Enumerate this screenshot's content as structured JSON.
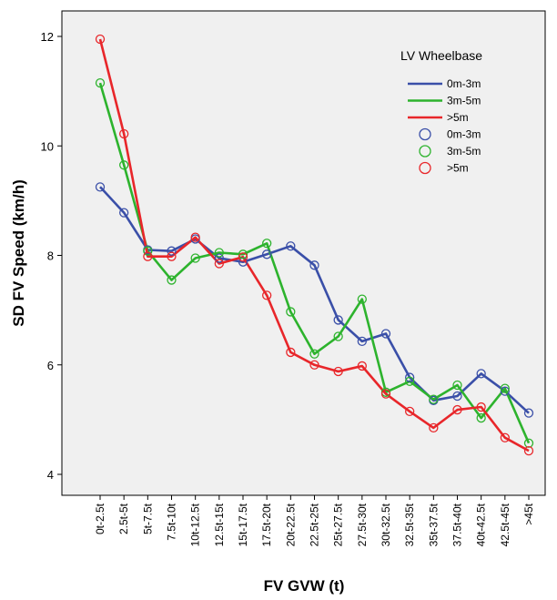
{
  "chart_data": {
    "type": "line",
    "xlabel": "FV GVW (t)",
    "ylabel": "SD FV Speed (km/h)",
    "ylim": [
      3.7,
      12.5
    ],
    "yticks": [
      4,
      6,
      8,
      10,
      12
    ],
    "grid": false,
    "legend_position": "top-right",
    "legend_title": "LV Wheelbase",
    "legend_entries": [
      {
        "label": "0m-3m",
        "kind": "line",
        "color": "#3a4fa8"
      },
      {
        "label": "3m-5m",
        "kind": "line",
        "color": "#2db32d"
      },
      {
        "label": ">5m",
        "kind": "line",
        "color": "#e8262a"
      },
      {
        "label": "0m-3m",
        "kind": "marker",
        "color": "#3a4fa8"
      },
      {
        "label": "3m-5m",
        "kind": "marker",
        "color": "#2db32d"
      },
      {
        "label": ">5m",
        "kind": "marker",
        "color": "#e8262a"
      }
    ],
    "categories": [
      "0t-2.5t",
      "2.5t-5t",
      "5t-7.5t",
      "7.5t-10t",
      "10t-12.5t",
      "12.5t-15t",
      "15t-17.5t",
      "17.5t-20t",
      "20t-22.5t",
      "22.5t-25t",
      "25t-27.5t",
      "27.5t-30t",
      "30t-32.5t",
      "32.5t-35t",
      "35t-37.5t",
      "37.5t-40t",
      "40t-42.5t",
      "42.5t-45t",
      ">45t"
    ],
    "series": [
      {
        "name": "0m-3m",
        "color": "#3a4fa8",
        "values": [
          9.25,
          8.78,
          8.1,
          8.08,
          8.3,
          7.95,
          7.88,
          8.02,
          8.17,
          7.82,
          6.82,
          6.43,
          6.57,
          5.77,
          5.35,
          5.43,
          5.84,
          5.52,
          5.12
        ]
      },
      {
        "name": "3m-5m",
        "color": "#2db32d",
        "values": [
          11.15,
          9.65,
          8.08,
          7.55,
          7.95,
          8.05,
          8.02,
          8.22,
          6.97,
          6.2,
          6.52,
          7.2,
          5.5,
          5.7,
          5.37,
          5.63,
          5.03,
          5.57,
          4.57
        ]
      },
      {
        "name": ">5m",
        "color": "#e8262a",
        "values": [
          11.95,
          10.22,
          7.98,
          7.98,
          8.33,
          7.85,
          7.97,
          7.27,
          6.23,
          6.0,
          5.88,
          5.98,
          5.47,
          5.15,
          4.85,
          5.18,
          5.23,
          4.67,
          4.43
        ]
      }
    ]
  }
}
